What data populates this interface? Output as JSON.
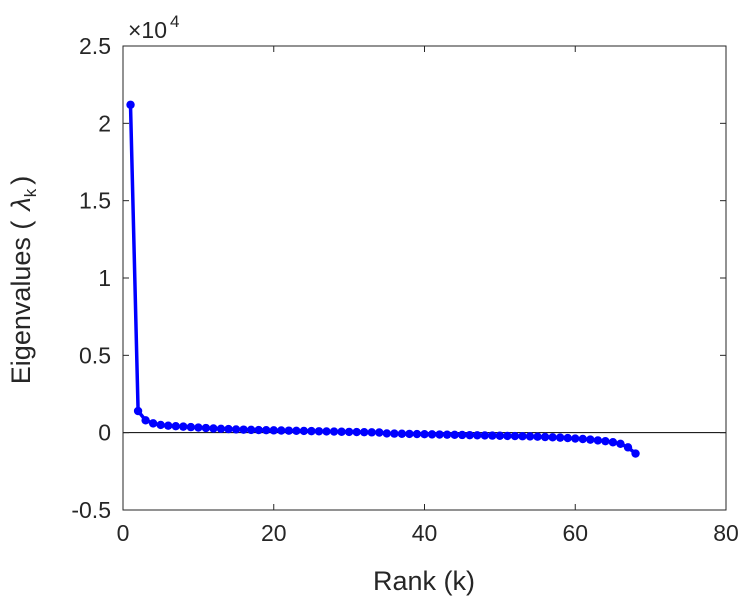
{
  "chart_data": {
    "type": "line",
    "xlabel": "Rank (k)",
    "ylabel": {
      "prefix": "Eigenvalues (",
      "symbol": "λ",
      "subscript": "k",
      "suffix": ")"
    },
    "x_ticks": [
      "0",
      "20",
      "40",
      "60",
      "80"
    ],
    "y_ticks": [
      "-0.5",
      "0",
      "0.5",
      "1",
      "1.5",
      "2",
      "2.5"
    ],
    "y_multiplier": "×10",
    "y_multiplier_exponent": "4",
    "xlim": [
      0,
      80
    ],
    "ylim": [
      -5000,
      25000
    ],
    "grid": false,
    "zero_line": true,
    "line_color": "#0000ff",
    "series": [
      {
        "x": [
          1,
          2,
          3,
          4,
          5,
          6,
          7,
          8,
          9,
          10,
          11,
          12,
          13,
          14,
          15,
          16,
          17,
          18,
          19,
          20,
          21,
          22,
          23,
          24,
          25,
          26,
          27,
          28,
          29,
          30,
          31,
          32,
          33,
          34,
          35,
          36,
          37,
          38,
          39,
          40,
          41,
          42,
          43,
          44,
          45,
          46,
          47,
          48,
          49,
          50,
          51,
          52,
          53,
          54,
          55,
          56,
          57,
          58,
          59,
          60,
          61,
          62,
          63,
          64,
          65,
          66,
          67,
          68
        ],
        "y": [
          21200,
          1400,
          800,
          600,
          500,
          450,
          420,
          390,
          360,
          330,
          300,
          270,
          250,
          230,
          210,
          195,
          180,
          170,
          160,
          150,
          140,
          130,
          120,
          110,
          100,
          90,
          80,
          70,
          60,
          50,
          40,
          30,
          20,
          10,
          -50,
          -60,
          -70,
          -80,
          -90,
          -100,
          -110,
          -120,
          -130,
          -140,
          -150,
          -160,
          -170,
          -180,
          -190,
          -200,
          -210,
          -220,
          -230,
          -240,
          -260,
          -280,
          -300,
          -320,
          -350,
          -380,
          -410,
          -450,
          -500,
          -550,
          -620,
          -720,
          -950,
          -1350
        ]
      }
    ]
  }
}
